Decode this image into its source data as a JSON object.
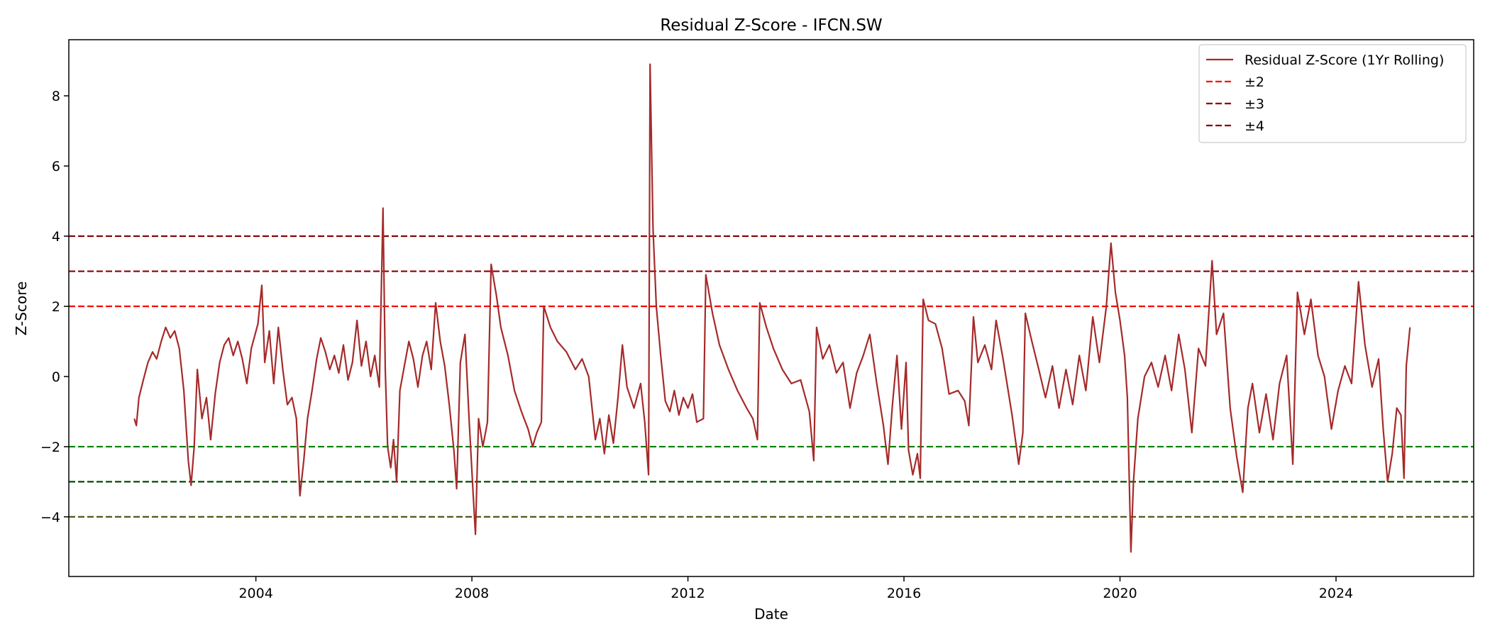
{
  "chart_data": {
    "type": "line",
    "title": "Residual Z-Score - IFCN.SW",
    "xlabel": "Date",
    "ylabel": "Z-Score",
    "xlim": [
      "2000-07-15",
      "2026-07-20"
    ],
    "ylim": [
      -5.7,
      9.6
    ],
    "x_ticks": [
      {
        "date": "2004-01-01",
        "label": "2004"
      },
      {
        "date": "2008-01-01",
        "label": "2008"
      },
      {
        "date": "2012-01-01",
        "label": "2012"
      },
      {
        "date": "2016-01-01",
        "label": "2016"
      },
      {
        "date": "2020-01-01",
        "label": "2020"
      },
      {
        "date": "2024-01-01",
        "label": "2024"
      }
    ],
    "y_ticks": [
      {
        "value": -4,
        "label": "−4"
      },
      {
        "value": -2,
        "label": "−2"
      },
      {
        "value": 0,
        "label": "0"
      },
      {
        "value": 2,
        "label": "2"
      },
      {
        "value": 4,
        "label": "4"
      },
      {
        "value": 6,
        "label": "6"
      },
      {
        "value": 8,
        "label": "8"
      }
    ],
    "grid": false,
    "legend_position": "top-right",
    "series": [
      {
        "name": "Residual Z-Score (1Yr Rolling)",
        "color": "#a52a2a",
        "points": [
          [
            "2001-10-01",
            -1.2
          ],
          [
            "2001-10-15",
            -1.4
          ],
          [
            "2001-11-01",
            -0.6
          ],
          [
            "2001-12-01",
            -0.1
          ],
          [
            "2002-01-01",
            0.4
          ],
          [
            "2002-02-01",
            0.7
          ],
          [
            "2002-03-01",
            0.5
          ],
          [
            "2002-04-01",
            1.0
          ],
          [
            "2002-05-01",
            1.4
          ],
          [
            "2002-06-01",
            1.1
          ],
          [
            "2002-07-01",
            1.3
          ],
          [
            "2002-08-01",
            0.8
          ],
          [
            "2002-09-01",
            -0.4
          ],
          [
            "2002-10-01",
            -2.4
          ],
          [
            "2002-10-20",
            -3.1
          ],
          [
            "2002-11-10",
            -2.0
          ],
          [
            "2002-12-01",
            0.2
          ],
          [
            "2003-01-01",
            -1.2
          ],
          [
            "2003-02-01",
            -0.6
          ],
          [
            "2003-03-01",
            -1.8
          ],
          [
            "2003-04-01",
            -0.5
          ],
          [
            "2003-05-01",
            0.4
          ],
          [
            "2003-06-01",
            0.9
          ],
          [
            "2003-07-01",
            1.1
          ],
          [
            "2003-08-01",
            0.6
          ],
          [
            "2003-09-01",
            1.0
          ],
          [
            "2003-10-01",
            0.5
          ],
          [
            "2003-11-01",
            -0.2
          ],
          [
            "2003-12-01",
            0.8
          ],
          [
            "2004-01-15",
            1.5
          ],
          [
            "2004-02-10",
            2.6
          ],
          [
            "2004-03-01",
            0.4
          ],
          [
            "2004-04-01",
            1.3
          ],
          [
            "2004-05-01",
            -0.2
          ],
          [
            "2004-06-01",
            1.4
          ],
          [
            "2004-07-01",
            0.2
          ],
          [
            "2004-08-01",
            -0.8
          ],
          [
            "2004-09-01",
            -0.6
          ],
          [
            "2004-10-01",
            -1.2
          ],
          [
            "2004-10-25",
            -3.4
          ],
          [
            "2004-11-20",
            -2.4
          ],
          [
            "2004-12-15",
            -1.2
          ],
          [
            "2005-01-15",
            -0.4
          ],
          [
            "2005-02-15",
            0.5
          ],
          [
            "2005-03-15",
            1.1
          ],
          [
            "2005-04-15",
            0.7
          ],
          [
            "2005-05-15",
            0.2
          ],
          [
            "2005-06-15",
            0.6
          ],
          [
            "2005-07-15",
            0.1
          ],
          [
            "2005-08-15",
            0.9
          ],
          [
            "2005-09-15",
            -0.1
          ],
          [
            "2005-10-15",
            0.4
          ],
          [
            "2005-11-15",
            1.6
          ],
          [
            "2005-12-15",
            0.3
          ],
          [
            "2006-01-15",
            1.0
          ],
          [
            "2006-02-15",
            0.0
          ],
          [
            "2006-03-15",
            0.6
          ],
          [
            "2006-04-15",
            -0.3
          ],
          [
            "2006-05-10",
            4.8
          ],
          [
            "2006-05-25",
            0.2
          ],
          [
            "2006-06-10",
            -2.0
          ],
          [
            "2006-07-01",
            -2.6
          ],
          [
            "2006-07-20",
            -1.8
          ],
          [
            "2006-08-10",
            -3.0
          ],
          [
            "2006-09-01",
            -0.4
          ],
          [
            "2006-10-01",
            0.3
          ],
          [
            "2006-11-01",
            1.0
          ],
          [
            "2006-12-01",
            0.5
          ],
          [
            "2007-01-01",
            -0.3
          ],
          [
            "2007-02-01",
            0.6
          ],
          [
            "2007-03-01",
            1.0
          ],
          [
            "2007-04-01",
            0.2
          ],
          [
            "2007-05-01",
            2.1
          ],
          [
            "2007-06-01",
            1.0
          ],
          [
            "2007-07-01",
            0.3
          ],
          [
            "2007-08-01",
            -0.8
          ],
          [
            "2007-09-01",
            -2.1
          ],
          [
            "2007-09-20",
            -3.2
          ],
          [
            "2007-10-15",
            0.4
          ],
          [
            "2007-11-15",
            1.2
          ],
          [
            "2007-12-15",
            -1.4
          ],
          [
            "2008-01-10",
            -3.4
          ],
          [
            "2008-01-25",
            -4.5
          ],
          [
            "2008-02-15",
            -1.2
          ],
          [
            "2008-03-15",
            -2.0
          ],
          [
            "2008-04-15",
            -1.3
          ],
          [
            "2008-05-10",
            3.2
          ],
          [
            "2008-06-15",
            2.3
          ],
          [
            "2008-07-15",
            1.4
          ],
          [
            "2008-09-01",
            0.6
          ],
          [
            "2008-10-15",
            -0.4
          ],
          [
            "2008-12-01",
            -1.0
          ],
          [
            "2009-01-15",
            -1.5
          ],
          [
            "2009-02-15",
            -2.0
          ],
          [
            "2009-03-15",
            -1.6
          ],
          [
            "2009-04-15",
            -1.3
          ],
          [
            "2009-05-01",
            2.0
          ],
          [
            "2009-06-15",
            1.4
          ],
          [
            "2009-08-01",
            1.0
          ],
          [
            "2009-10-01",
            0.7
          ],
          [
            "2009-12-01",
            0.2
          ],
          [
            "2010-01-15",
            0.5
          ],
          [
            "2010-03-01",
            0.0
          ],
          [
            "2010-04-15",
            -1.8
          ],
          [
            "2010-05-15",
            -1.2
          ],
          [
            "2010-06-15",
            -2.2
          ],
          [
            "2010-07-15",
            -1.1
          ],
          [
            "2010-08-15",
            -1.9
          ],
          [
            "2010-09-15",
            -0.6
          ],
          [
            "2010-10-15",
            0.9
          ],
          [
            "2010-11-15",
            -0.3
          ],
          [
            "2011-01-01",
            -0.9
          ],
          [
            "2011-02-15",
            -0.2
          ],
          [
            "2011-03-15",
            -1.3
          ],
          [
            "2011-04-10",
            -2.8
          ],
          [
            "2011-04-20",
            8.9
          ],
          [
            "2011-05-10",
            4.2
          ],
          [
            "2011-06-01",
            2.0
          ],
          [
            "2011-07-01",
            0.6
          ],
          [
            "2011-08-01",
            -0.7
          ],
          [
            "2011-09-01",
            -1.0
          ],
          [
            "2011-10-01",
            -0.4
          ],
          [
            "2011-11-01",
            -1.1
          ],
          [
            "2011-12-01",
            -0.6
          ],
          [
            "2012-01-01",
            -0.9
          ],
          [
            "2012-02-01",
            -0.5
          ],
          [
            "2012-03-01",
            -1.3
          ],
          [
            "2012-04-15",
            -1.2
          ],
          [
            "2012-05-01",
            2.9
          ],
          [
            "2012-06-15",
            1.8
          ],
          [
            "2012-08-01",
            0.9
          ],
          [
            "2012-10-01",
            0.2
          ],
          [
            "2012-12-01",
            -0.4
          ],
          [
            "2013-02-01",
            -0.9
          ],
          [
            "2013-03-15",
            -1.2
          ],
          [
            "2013-04-15",
            -1.8
          ],
          [
            "2013-05-01",
            2.1
          ],
          [
            "2013-06-15",
            1.4
          ],
          [
            "2013-08-01",
            0.8
          ],
          [
            "2013-10-01",
            0.2
          ],
          [
            "2013-12-01",
            -0.2
          ],
          [
            "2014-02-01",
            -0.1
          ],
          [
            "2014-04-01",
            -1.0
          ],
          [
            "2014-05-01",
            -2.4
          ],
          [
            "2014-05-20",
            1.4
          ],
          [
            "2014-07-01",
            0.5
          ],
          [
            "2014-08-15",
            0.9
          ],
          [
            "2014-10-01",
            0.1
          ],
          [
            "2014-11-15",
            0.4
          ],
          [
            "2015-01-01",
            -0.9
          ],
          [
            "2015-02-15",
            0.1
          ],
          [
            "2015-04-01",
            0.6
          ],
          [
            "2015-05-15",
            1.2
          ],
          [
            "2015-07-01",
            -0.2
          ],
          [
            "2015-08-15",
            -1.4
          ],
          [
            "2015-09-15",
            -2.5
          ],
          [
            "2015-10-15",
            -0.8
          ],
          [
            "2015-11-15",
            0.6
          ],
          [
            "2015-12-15",
            -1.5
          ],
          [
            "2016-01-15",
            0.4
          ],
          [
            "2016-02-01",
            -2.1
          ],
          [
            "2016-03-01",
            -2.8
          ],
          [
            "2016-04-01",
            -2.2
          ],
          [
            "2016-04-20",
            -2.9
          ],
          [
            "2016-05-10",
            2.2
          ],
          [
            "2016-06-15",
            1.6
          ],
          [
            "2016-08-01",
            1.5
          ],
          [
            "2016-09-15",
            0.8
          ],
          [
            "2016-11-01",
            -0.5
          ],
          [
            "2017-01-01",
            -0.4
          ],
          [
            "2017-02-15",
            -0.7
          ],
          [
            "2017-03-15",
            -1.4
          ],
          [
            "2017-04-15",
            1.7
          ],
          [
            "2017-05-15",
            0.4
          ],
          [
            "2017-07-01",
            0.9
          ],
          [
            "2017-08-15",
            0.2
          ],
          [
            "2017-09-15",
            1.6
          ],
          [
            "2017-11-01",
            0.5
          ],
          [
            "2018-01-01",
            -1.1
          ],
          [
            "2018-02-15",
            -2.5
          ],
          [
            "2018-03-15",
            -1.6
          ],
          [
            "2018-04-01",
            1.8
          ],
          [
            "2018-05-15",
            1.0
          ],
          [
            "2018-07-01",
            0.2
          ],
          [
            "2018-08-15",
            -0.6
          ],
          [
            "2018-10-01",
            0.3
          ],
          [
            "2018-11-15",
            -0.9
          ],
          [
            "2019-01-01",
            0.2
          ],
          [
            "2019-02-15",
            -0.8
          ],
          [
            "2019-04-01",
            0.6
          ],
          [
            "2019-05-15",
            -0.4
          ],
          [
            "2019-07-01",
            1.7
          ],
          [
            "2019-08-15",
            0.4
          ],
          [
            "2019-10-01",
            2.0
          ],
          [
            "2019-11-01",
            3.8
          ],
          [
            "2019-12-01",
            2.4
          ],
          [
            "2020-01-01",
            1.6
          ],
          [
            "2020-02-01",
            0.6
          ],
          [
            "2020-02-20",
            -0.6
          ],
          [
            "2020-03-15",
            -5.0
          ],
          [
            "2020-04-01",
            -3.0
          ],
          [
            "2020-05-01",
            -1.2
          ],
          [
            "2020-06-15",
            0.0
          ],
          [
            "2020-08-01",
            0.4
          ],
          [
            "2020-09-15",
            -0.3
          ],
          [
            "2020-11-01",
            0.6
          ],
          [
            "2020-12-15",
            -0.4
          ],
          [
            "2021-02-01",
            1.2
          ],
          [
            "2021-03-15",
            0.2
          ],
          [
            "2021-05-01",
            -1.6
          ],
          [
            "2021-06-15",
            0.8
          ],
          [
            "2021-08-01",
            0.3
          ],
          [
            "2021-09-15",
            3.3
          ],
          [
            "2021-10-15",
            1.2
          ],
          [
            "2021-12-01",
            1.8
          ],
          [
            "2022-01-15",
            -0.9
          ],
          [
            "2022-03-01",
            -2.3
          ],
          [
            "2022-04-10",
            -3.3
          ],
          [
            "2022-05-15",
            -0.9
          ],
          [
            "2022-06-15",
            -0.2
          ],
          [
            "2022-08-01",
            -1.6
          ],
          [
            "2022-09-15",
            -0.5
          ],
          [
            "2022-11-01",
            -1.8
          ],
          [
            "2022-12-15",
            -0.2
          ],
          [
            "2023-02-01",
            0.6
          ],
          [
            "2023-03-15",
            -2.5
          ],
          [
            "2023-04-15",
            2.4
          ],
          [
            "2023-06-01",
            1.2
          ],
          [
            "2023-07-15",
            2.2
          ],
          [
            "2023-09-01",
            0.6
          ],
          [
            "2023-10-15",
            0.0
          ],
          [
            "2023-12-01",
            -1.5
          ],
          [
            "2024-01-15",
            -0.4
          ],
          [
            "2024-03-01",
            0.3
          ],
          [
            "2024-04-15",
            -0.2
          ],
          [
            "2024-06-01",
            2.7
          ],
          [
            "2024-07-15",
            0.9
          ],
          [
            "2024-09-01",
            -0.3
          ],
          [
            "2024-10-15",
            0.5
          ],
          [
            "2024-11-15",
            -1.5
          ],
          [
            "2024-12-15",
            -3.0
          ],
          [
            "2025-01-15",
            -2.2
          ],
          [
            "2025-02-15",
            -0.9
          ],
          [
            "2025-03-15",
            -1.1
          ],
          [
            "2025-04-05",
            -2.9
          ],
          [
            "2025-04-20",
            0.3
          ],
          [
            "2025-05-15",
            1.4
          ]
        ]
      }
    ],
    "reference_lines": [
      {
        "y": 2,
        "label": "±2",
        "color": "#ff0000",
        "in_legend": true
      },
      {
        "y": -2,
        "color": "#008000",
        "in_legend": false
      },
      {
        "y": 3,
        "label": "±3",
        "color": "#8b0000",
        "in_legend": true
      },
      {
        "y": -3,
        "color": "#004d00",
        "in_legend": false
      },
      {
        "y": 4,
        "label": "±4",
        "color": "#800000",
        "in_legend": true
      },
      {
        "y": -4,
        "color": "#4f5a1a",
        "in_legend": false
      }
    ]
  }
}
